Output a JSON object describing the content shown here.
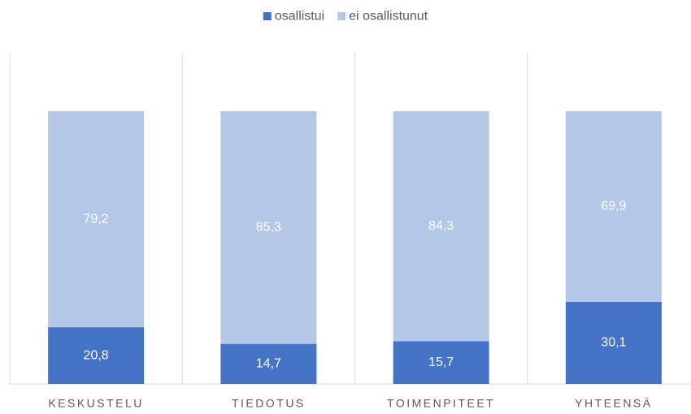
{
  "chart_data": {
    "type": "stacked_bar",
    "categories": [
      "KESKUSTELU",
      "TIEDOTUS",
      "TOIMENPITEET",
      "YHTEENSÄ"
    ],
    "series": [
      {
        "name": "osallistui",
        "color": "#4472c4",
        "values": [
          20.8,
          14.7,
          15.7,
          30.1
        ],
        "value_labels": [
          "20,8",
          "14,7",
          "15,7",
          "30,1"
        ]
      },
      {
        "name": "ei osallistunut",
        "color": "#b4c7e7",
        "values": [
          79.2,
          85.3,
          84.3,
          69.9
        ],
        "value_labels": [
          "79,2",
          "85,3",
          "84,3",
          "69,9"
        ]
      }
    ],
    "ylim": [
      0,
      120
    ],
    "legend": "top"
  }
}
